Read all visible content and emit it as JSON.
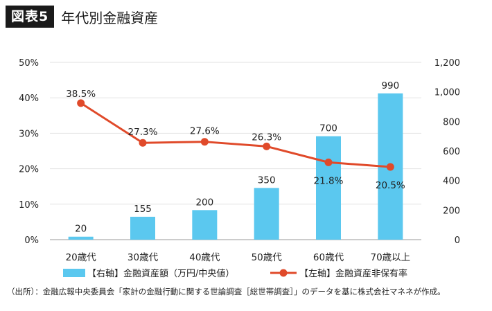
{
  "header": {
    "badge": "図表5",
    "title": "年代別金融資産"
  },
  "chart_data": {
    "type": "bar+line",
    "categories": [
      "20歳代",
      "30歳代",
      "40歳代",
      "50歳代",
      "60歳代",
      "70歳以上"
    ],
    "bar_series": {
      "name": "【右軸】金融資産額（万円/中央値）",
      "axis": "right",
      "values": [
        20,
        155,
        200,
        350,
        700,
        990
      ],
      "color": "#5bc8ef",
      "labels": [
        "20",
        "155",
        "200",
        "350",
        "700",
        "990"
      ]
    },
    "line_series": {
      "name": "【左軸】金融資産非保有率",
      "axis": "left",
      "values": [
        38.5,
        27.3,
        27.6,
        26.3,
        21.8,
        20.5
      ],
      "color": "#e04a2a",
      "labels": [
        "38.5%",
        "27.3%",
        "27.6%",
        "26.3%",
        "21.8%",
        "20.5%"
      ]
    },
    "left_axis": {
      "ylim": [
        0,
        50
      ],
      "ticks": [
        "0%",
        "10%",
        "20%",
        "30%",
        "40%",
        "50%"
      ]
    },
    "right_axis": {
      "ylim": [
        0,
        1200
      ],
      "ticks": [
        "0",
        "200",
        "400",
        "600",
        "800",
        "1,000",
        "1,200"
      ]
    },
    "legend_position": "bottom"
  },
  "source": "（出所）：金融広報中央委員会「家計の金融行動に関する世論調査［総世帯調査］」のデータを基に株式会社マネネが作成。"
}
